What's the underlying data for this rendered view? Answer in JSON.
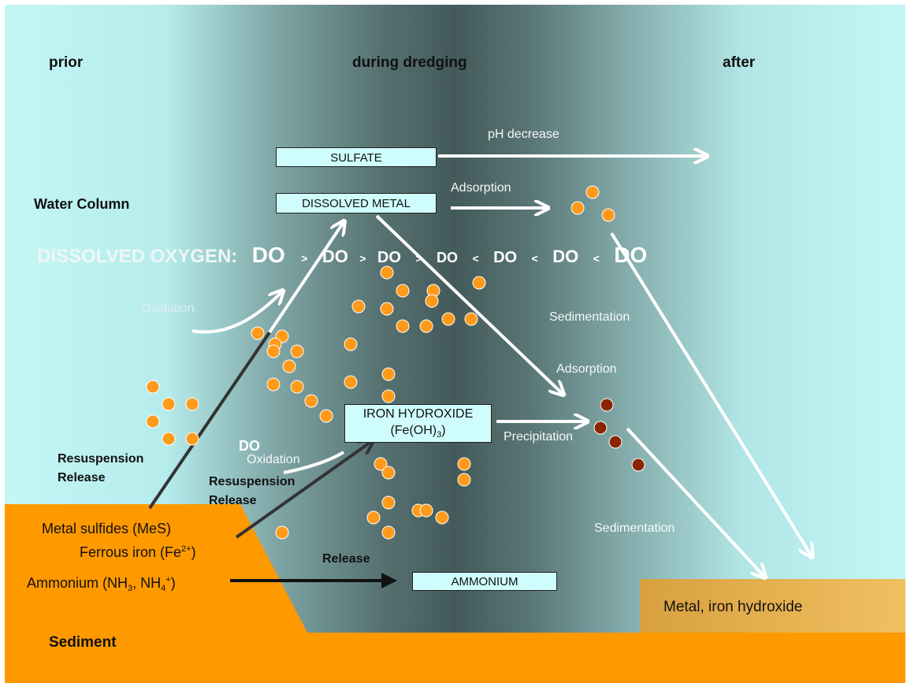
{
  "phases": {
    "prior": "prior",
    "during": "during dredging",
    "after": "after"
  },
  "zones": {
    "water_column": "Water Column",
    "sediment": "Sediment"
  },
  "dissolved_oxygen": {
    "label": "DISSOLVED OXYGEN:",
    "terms": [
      "DO",
      ">",
      "DO",
      ">",
      "DO",
      ">",
      "DO",
      "<",
      "DO",
      "<",
      "DO",
      "<",
      "DO"
    ]
  },
  "boxes": {
    "sulfate": "SULFATE",
    "dissolved_metal": "DISSOLVED METAL",
    "iron_hydroxide_line1": "IRON HYDROXIDE",
    "iron_hydroxide_line2": "(Fe(OH)",
    "iron_hydroxide_sub": "3",
    "iron_hydroxide_close": ")",
    "ammonium": "AMMONIUM"
  },
  "process_labels": {
    "ph_decrease": "pH decrease",
    "adsorption_top": "Adsorption",
    "oxidation_top": "Oxidation",
    "sedimentation_top": "Sedimentation",
    "adsorption_mid": "Adsorption",
    "precipitation": "Precipitation",
    "do_small": "DO",
    "oxidation_mid": "Oxidation",
    "sedimentation_bottom": "Sedimentation",
    "release": "Release"
  },
  "resuspension_left": {
    "line1": "Resuspension",
    "line2": "Release"
  },
  "resuspension_mid": {
    "line1": "Resuspension",
    "line2": "Release"
  },
  "sediment_species": {
    "metal_sulfides": "Metal sulfides (MeS)",
    "ferrous_prefix": "Ferrous iron (Fe",
    "ferrous_sup": "2+",
    "ferrous_suffix": ")",
    "ammonium_prefix": "Ammonium (NH",
    "ammonium_sub1": "3",
    "ammonium_mid": ", NH",
    "ammonium_sub2": "4",
    "ammonium_sup": "+",
    "ammonium_suffix": ")"
  },
  "deposit": "Metal, iron hydroxide",
  "colors": {
    "water_light": "#c2f4f4",
    "water_dark": "#445c5c",
    "sediment": "#ff9900",
    "deposit": "#e8b050",
    "particle_orange": "#ff9a1a",
    "particle_brown": "#8b2500",
    "arrow_white": "#ffffff",
    "arrow_dark": "#333333"
  }
}
